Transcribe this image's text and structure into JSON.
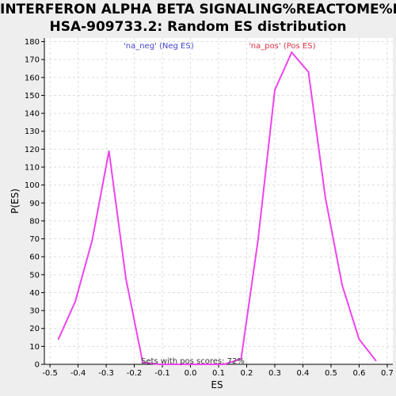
{
  "chart_data": {
    "type": "line",
    "title_lines": [
      "INTERFERON ALPHA BETA SIGNALING%REACTOME%R-",
      "HSA-909733.2: Random ES distribution"
    ],
    "xlabel": "ES",
    "ylabel": "P(ES)",
    "xlim": [
      -0.52,
      0.72
    ],
    "ylim": [
      0,
      182
    ],
    "x_ticks": [
      -0.5,
      -0.4,
      -0.3,
      -0.2,
      -0.1,
      0.0,
      0.1,
      0.2,
      0.3,
      0.4,
      0.5,
      0.6,
      0.7
    ],
    "x_tick_labels": [
      "-0.5",
      "-0.4",
      "-0.3",
      "-0.2",
      "-0.1",
      "0.0",
      "0.1",
      "0.2",
      "0.3",
      "0.4",
      "0.5",
      "0.6",
      "0.7"
    ],
    "y_ticks": [
      0,
      10,
      20,
      30,
      40,
      50,
      60,
      70,
      80,
      90,
      100,
      110,
      120,
      130,
      140,
      150,
      160,
      170,
      180
    ],
    "y_tick_labels": [
      "0",
      "10",
      "20",
      "30",
      "40",
      "50",
      "60",
      "70",
      "80",
      "90",
      "100",
      "110",
      "120",
      "130",
      "140",
      "150",
      "160",
      "170",
      "180"
    ],
    "grid": true,
    "series": [
      {
        "color": "#ee44ee",
        "x": [
          -0.47,
          -0.41,
          -0.35,
          -0.29,
          -0.23,
          -0.17,
          -0.11,
          -0.05,
          0.01,
          0.07,
          0.12,
          0.18,
          0.24,
          0.3,
          0.36,
          0.42,
          0.48,
          0.54,
          0.6,
          0.66
        ],
        "y": [
          14,
          35,
          69,
          119,
          48,
          1,
          0,
          0,
          0,
          0,
          0,
          3,
          69,
          153,
          174,
          163,
          93,
          44,
          14,
          2
        ]
      }
    ],
    "annotations": {
      "neg": {
        "text": "'na_neg' (Neg ES)",
        "color": "#4444cc"
      },
      "pos": {
        "text": "'na_pos' (Pos ES)",
        "color": "#dd3344"
      },
      "summary": {
        "text": "Sets with pos scores: 72%",
        "color": "#333333"
      }
    },
    "colors": {
      "plot_background": "#ffffff",
      "page_background": "#eeeeee",
      "grid": "#dddddd"
    }
  }
}
